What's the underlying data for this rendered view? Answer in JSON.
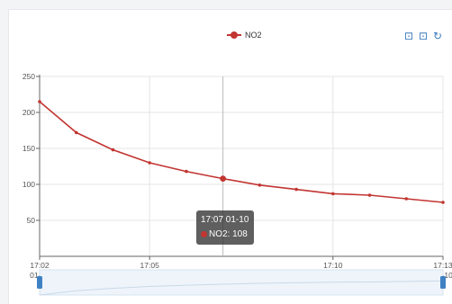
{
  "chart_data": {
    "type": "line",
    "x": [
      "17:02 01-10",
      "17:03 01-10",
      "17:04 01-10",
      "17:05 01-10",
      "17:06 01-10",
      "17:07 01-10",
      "17:08 01-10",
      "17:09 01-10",
      "17:10 01-10",
      "17:11 01-10",
      "17:12 01-10",
      "17:13 01-10"
    ],
    "series": [
      {
        "name": "NO2",
        "color": "#c23531",
        "values": [
          215,
          172,
          148,
          130,
          118,
          108,
          99,
          93,
          87,
          85,
          80,
          75
        ]
      }
    ],
    "ylim": [
      0,
      250
    ],
    "yticks": [
      50,
      100,
      150,
      200,
      250
    ],
    "xticks": [
      {
        "time": "17:02",
        "date": "01-10"
      },
      {
        "time": "17:05",
        "date": "01-10"
      },
      {
        "time": "17:10",
        "date": "01-10"
      },
      {
        "time": "17:13",
        "date": "01-10"
      }
    ],
    "grid": true,
    "legend": "top-center",
    "tooltip": {
      "title": "17:07 01-10",
      "series": "NO2",
      "value": "108",
      "label": "NO2: 108"
    }
  },
  "toolbox": {
    "icons": [
      "zoom-icon",
      "zoom-reset-icon",
      "restore-icon"
    ]
  }
}
